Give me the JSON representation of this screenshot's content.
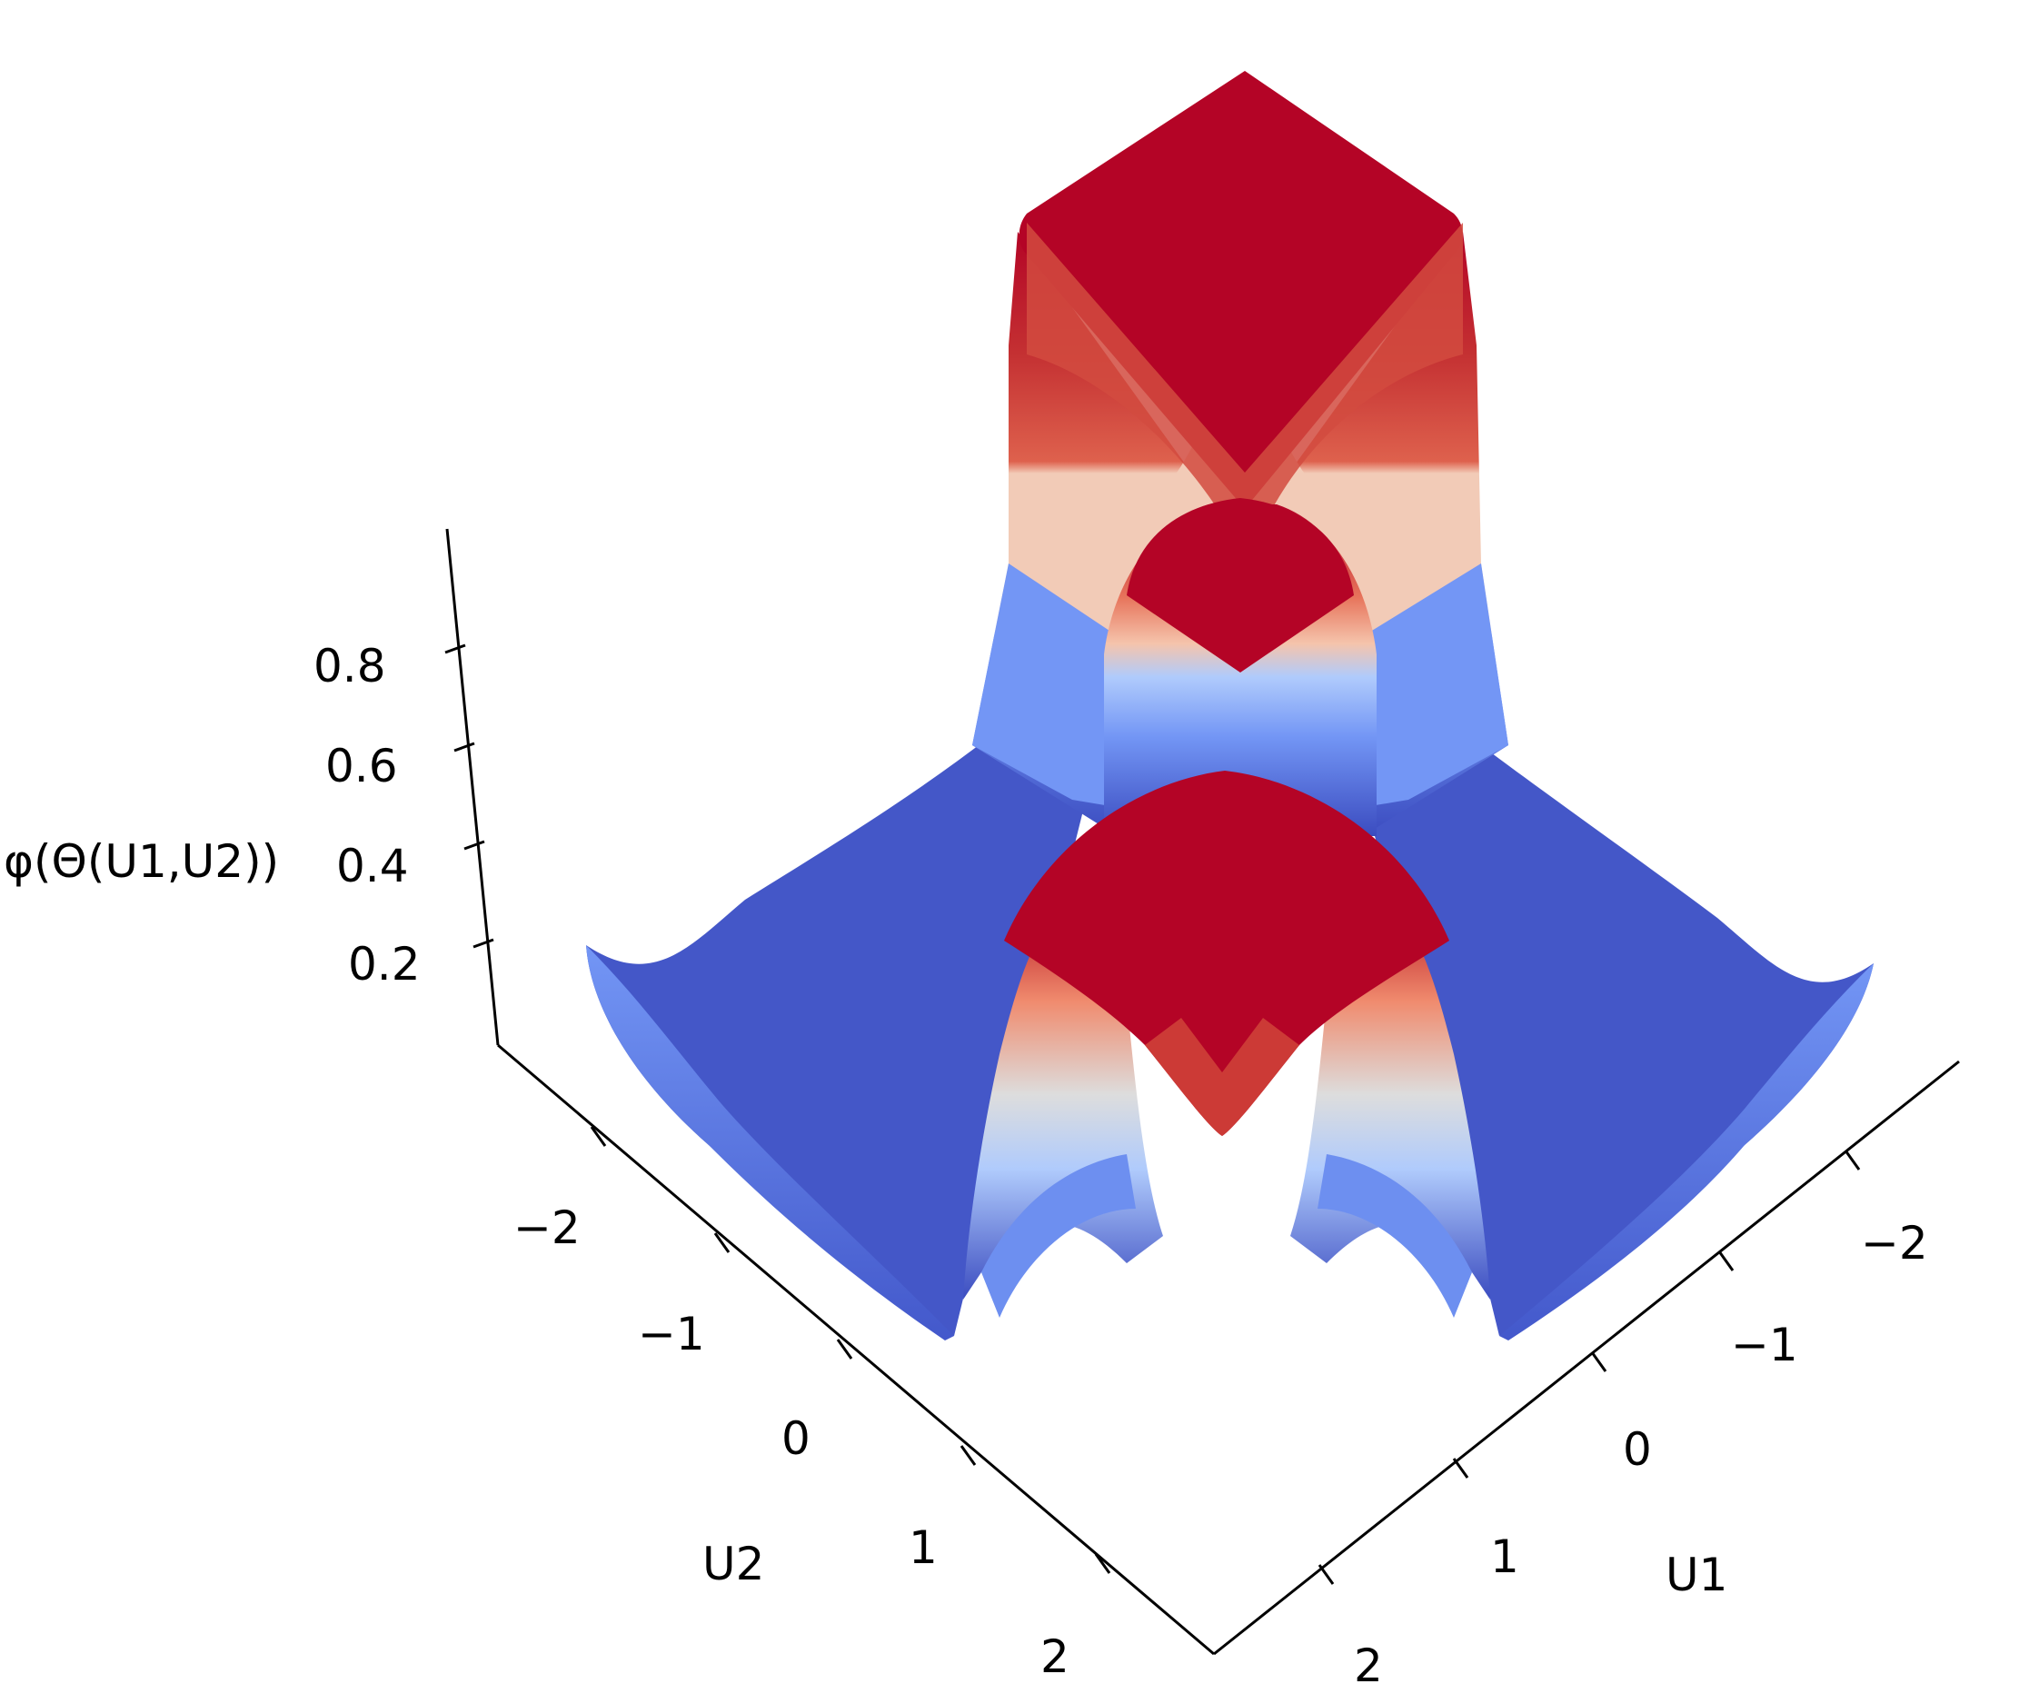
{
  "chart_data": {
    "type": "surface",
    "title": "",
    "xlabel": "U1",
    "ylabel": "U2",
    "zlabel": "φ(Θ(U1,U2))",
    "x_ticks": [
      -2,
      -1,
      0,
      1,
      2
    ],
    "y_ticks": [
      -2,
      -1,
      0,
      1,
      2
    ],
    "z_ticks": [
      0.2,
      0.4,
      0.6,
      0.8
    ],
    "x_range": [
      -2.5,
      2.5
    ],
    "y_range": [
      -2.5,
      2.5
    ],
    "z_range": [
      0.0,
      1.0
    ],
    "colormap": "coolwarm",
    "colormap_colors": [
      "#3b4cc0",
      "#7396f5",
      "#b0cbfc",
      "#dddddd",
      "#f5c4ac",
      "#e7745b",
      "#b40426"
    ],
    "grid": false
  }
}
